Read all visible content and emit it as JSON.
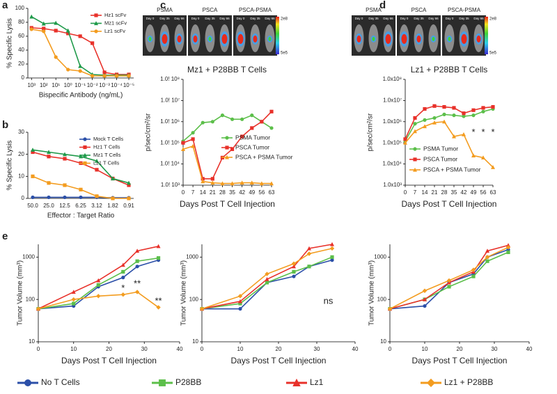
{
  "chart_data": [
    {
      "type": "line",
      "panel_label": "a",
      "ylabel": "% Specific Lysis",
      "xlabel": "Bispecific Antibody (ng/mL)",
      "x": [
        1000,
        100,
        10,
        1,
        0.1,
        0.01,
        0.001,
        0.0001,
        1e-05
      ],
      "xlog": true,
      "xlim": [
        2000,
        4e-06
      ],
      "xticks": [
        {
          "value": 1000,
          "label": "10³"
        },
        {
          "value": 100,
          "label": "10²"
        },
        {
          "value": 10,
          "label": "10¹"
        },
        {
          "value": 1,
          "label": "10⁰"
        },
        {
          "value": 0.1,
          "label": "10⁻¹"
        },
        {
          "value": 0.01,
          "label": "10⁻²"
        },
        {
          "value": 0.001,
          "label": "10⁻³"
        },
        {
          "value": 0.0001,
          "label": "10⁻⁴"
        },
        {
          "value": 1e-05,
          "label": "10⁻⁵"
        }
      ],
      "ylim": [
        0,
        100
      ],
      "yticks": [
        0,
        20,
        40,
        60,
        80,
        100
      ],
      "legend": "upper right",
      "series": [
        {
          "name": "Hz1 scFv",
          "color": "#e8312a",
          "marker": "square",
          "values": [
            72,
            71,
            68,
            64,
            60,
            50,
            8,
            5,
            5
          ]
        },
        {
          "name": "Mz1 scFv",
          "color": "#1f9a4a",
          "marker": "triangle",
          "values": [
            88,
            78,
            79,
            68,
            17,
            5,
            4,
            4,
            4
          ]
        },
        {
          "name": "Lz1 scFv",
          "color": "#f39c1f",
          "marker": "circle",
          "values": [
            70,
            67,
            30,
            12,
            10,
            3,
            3,
            3,
            3
          ]
        }
      ]
    },
    {
      "type": "line",
      "panel_label": "b",
      "ylabel": "% Specific Lysis",
      "xlabel": "Effector : Target Ratio",
      "categories": [
        "50.0",
        "25.0",
        "12.5",
        "6.25",
        "3.12",
        "1.82",
        "0.91"
      ],
      "ylim": [
        0,
        30
      ],
      "yticks": [
        0,
        10,
        20,
        30
      ],
      "legend": "upper right",
      "series": [
        {
          "name": "Mock T Cells",
          "color": "#2b4fa8",
          "marker": "circle",
          "values": [
            0.5,
            0.5,
            0.5,
            0.5,
            0.5,
            0.3,
            0.3
          ]
        },
        {
          "name": "Hz1 T Cells",
          "color": "#e8312a",
          "marker": "square",
          "values": [
            21,
            19,
            18,
            16,
            13,
            9,
            6
          ]
        },
        {
          "name": "Mz1 T Cells",
          "color": "#1f9a4a",
          "marker": "triangle",
          "values": [
            22,
            21,
            20,
            19,
            17,
            9,
            7
          ]
        },
        {
          "name": "Lz1 T Cells",
          "color": "#f39c1f",
          "marker": "square",
          "values": [
            10,
            7,
            6,
            4,
            1,
            0,
            0
          ]
        }
      ]
    },
    {
      "type": "line",
      "panel_label": "c",
      "title": "Mz1 + P28BB T Cells",
      "ylabel": "p/sec/cm²/sr",
      "xlabel": "Days Post T Cell Injection",
      "images": {
        "groups": [
          {
            "label": "PSMA",
            "days": [
              "Day 0",
              "Day 35",
              "Day 66"
            ]
          },
          {
            "label": "PSCA",
            "days": [
              "Day 0",
              "Day 35",
              "Day 66"
            ]
          },
          {
            "label": "PSCA-PSMA",
            "days": [
              "Day 0",
              "Day 35",
              "Day 66"
            ]
          }
        ],
        "scale_max": "2e8",
        "scale_min": "5e5"
      },
      "x": [
        0,
        7,
        14,
        21,
        28,
        35,
        42,
        49,
        56,
        63
      ],
      "xlim": [
        0,
        63
      ],
      "xticks": [
        0,
        7,
        14,
        21,
        28,
        35,
        42,
        49,
        56,
        63
      ],
      "ylog": true,
      "ylim": [
        1000,
        100000000
      ],
      "yticks": [
        {
          "value": 1000,
          "label": "1.0! 10³"
        },
        {
          "value": 10000,
          "label": "1.0! 10⁴"
        },
        {
          "value": 100000,
          "label": "1.0! 10⁵"
        },
        {
          "value": 1000000,
          "label": "1.0! 10⁶"
        },
        {
          "value": 10000000,
          "label": "1.0! 10⁷"
        },
        {
          "value": 100000000,
          "label": "1.0! 10⁸"
        }
      ],
      "legend": "lower right",
      "series": [
        {
          "name": "PSMA Tumor",
          "color": "#5cbf4a",
          "marker": "circle",
          "values": [
            120000,
            300000,
            900000,
            1000000,
            2000000,
            1300000,
            1300000,
            2000000,
            1000000,
            500000
          ]
        },
        {
          "name": "PSCA Tumor",
          "color": "#e8312a",
          "marker": "square",
          "values": [
            100000,
            150000,
            2000,
            2000,
            20000,
            50000,
            200000,
            500000,
            1000000,
            3000000
          ]
        },
        {
          "name": "PSCA + PSMA Tumor",
          "color": "#f39c1f",
          "marker": "triangle",
          "values": [
            50000,
            70000,
            1500,
            1300,
            1200,
            1200,
            1300,
            1300,
            1200,
            1200
          ]
        }
      ]
    },
    {
      "type": "line",
      "panel_label": "d",
      "title": "Lz1 + P28BB T Cells",
      "ylabel": "p/sec/cm²/sr",
      "xlabel": "Days Post T Cell Injection",
      "images": {
        "groups": [
          {
            "label": "PSMA",
            "days": [
              "Day 0",
              "Day 35",
              "Day 66"
            ]
          },
          {
            "label": "PSCA",
            "days": [
              "Day 0",
              "Day 35",
              "Day 66"
            ]
          },
          {
            "label": "PSCA-PSMA",
            "days": [
              "Day 0",
              "Day 35",
              "Day 66"
            ]
          }
        ],
        "scale_max": "2e8",
        "scale_min": "5e5"
      },
      "x": [
        0,
        7,
        14,
        21,
        28,
        35,
        42,
        49,
        56,
        63
      ],
      "xlim": [
        0,
        63
      ],
      "xticks": [
        0,
        7,
        14,
        21,
        28,
        35,
        42,
        49,
        56,
        63
      ],
      "ylog": true,
      "ylim": [
        1000,
        100000000
      ],
      "yticks": [
        {
          "value": 1000,
          "label": "1.0x10³"
        },
        {
          "value": 10000,
          "label": "1.0x10⁴"
        },
        {
          "value": 100000,
          "label": "1.0x10⁵"
        },
        {
          "value": 1000000,
          "label": "1.0x10⁶"
        },
        {
          "value": 10000000,
          "label": "1.0x10⁷"
        },
        {
          "value": 100000000,
          "label": "1.0x10⁸"
        }
      ],
      "legend": "lower left",
      "annotations": [
        {
          "text": "*",
          "x": 49,
          "y": 300000
        },
        {
          "text": "*",
          "x": 56,
          "y": 300000
        },
        {
          "text": "*",
          "x": 63,
          "y": 300000
        }
      ],
      "series": [
        {
          "name": "PSMA Tumor",
          "color": "#5cbf4a",
          "marker": "circle",
          "values": [
            120000,
            800000,
            1200000,
            1500000,
            2200000,
            2000000,
            1800000,
            2000000,
            3000000,
            4000000
          ]
        },
        {
          "name": "PSCA Tumor",
          "color": "#e8312a",
          "marker": "square",
          "values": [
            150000,
            1500000,
            4000000,
            5500000,
            5000000,
            4500000,
            2500000,
            3500000,
            4500000,
            5000000
          ]
        },
        {
          "name": "PSCA + PSMA Tumor",
          "color": "#f39c1f",
          "marker": "triangle",
          "values": [
            100000,
            350000,
            600000,
            900000,
            1000000,
            200000,
            250000,
            25000,
            20000,
            7000
          ]
        }
      ]
    },
    {
      "type": "line",
      "panel_label": "e",
      "ylabel": "Tumor Volume (mm³)",
      "xlabel": "Days Post T Cell Injection",
      "x": [
        0,
        10,
        17,
        24,
        28,
        34
      ],
      "xlim": [
        0,
        40
      ],
      "xticks": [
        0,
        10,
        20,
        30,
        40
      ],
      "ylog": true,
      "ylim": [
        10,
        2000
      ],
      "yticks": [
        10,
        100,
        1000
      ],
      "legend": "bottom",
      "annotations": [
        {
          "text": "*",
          "x": 24,
          "y": 180
        },
        {
          "text": "**",
          "x": 28,
          "y": 230
        },
        {
          "text": "**",
          "x": 34,
          "y": 90
        }
      ],
      "series": [
        {
          "name": "No T Cells",
          "color": "#2b4fa8",
          "marker": "circle",
          "values": [
            60,
            70,
            200,
            330,
            600,
            850
          ]
        },
        {
          "name": "P28BB",
          "color": "#5cbf4a",
          "marker": "square",
          "values": [
            60,
            80,
            220,
            450,
            800,
            950
          ]
        },
        {
          "name": "Lz1",
          "color": "#e8312a",
          "marker": "triangle",
          "values": [
            60,
            150,
            280,
            650,
            1400,
            1800
          ]
        },
        {
          "name": "Lz1 + P28BB",
          "color": "#f39c1f",
          "marker": "diamond",
          "values": [
            60,
            100,
            120,
            130,
            150,
            65
          ]
        }
      ]
    },
    {
      "type": "line",
      "ylabel": "Tumor Volume (mm³)",
      "xlabel": "Days Post T Cell Injection",
      "x": [
        0,
        10,
        17,
        24,
        28,
        34
      ],
      "xlim": [
        0,
        40
      ],
      "xticks": [
        0,
        10,
        20,
        30,
        40
      ],
      "ylog": true,
      "ylim": [
        10,
        2000
      ],
      "yticks": [
        10,
        100,
        1000
      ],
      "annotations": [
        {
          "text": "ns",
          "x": 33,
          "y": 90
        }
      ],
      "series": [
        {
          "color": "#2b4fa8",
          "marker": "circle",
          "values": [
            60,
            60,
            250,
            350,
            600,
            850
          ]
        },
        {
          "color": "#5cbf4a",
          "marker": "square",
          "values": [
            60,
            80,
            250,
            450,
            600,
            1000
          ]
        },
        {
          "color": "#e8312a",
          "marker": "triangle",
          "values": [
            60,
            90,
            300,
            600,
            1600,
            2000
          ]
        },
        {
          "color": "#f39c1f",
          "marker": "diamond",
          "values": [
            60,
            120,
            400,
            700,
            1200,
            1600
          ]
        }
      ]
    },
    {
      "type": "line",
      "ylabel": "Tumor Volume (mm³)",
      "xlabel": "Days Post T Cell Injection",
      "x": [
        0,
        10,
        17,
        24,
        28,
        34
      ],
      "xlim": [
        0,
        40
      ],
      "xticks": [
        0,
        10,
        20,
        30,
        40
      ],
      "ylog": true,
      "ylim": [
        10,
        2000
      ],
      "yticks": [
        10,
        100,
        1000
      ],
      "series": [
        {
          "color": "#2b4fa8",
          "marker": "circle",
          "values": [
            60,
            70,
            250,
            400,
            1000,
            1500
          ]
        },
        {
          "color": "#5cbf4a",
          "marker": "square",
          "values": [
            60,
            100,
            200,
            350,
            800,
            1300
          ]
        },
        {
          "color": "#e8312a",
          "marker": "triangle",
          "values": [
            60,
            100,
            250,
            450,
            1400,
            1900
          ]
        },
        {
          "color": "#f39c1f",
          "marker": "diamond",
          "values": [
            60,
            160,
            280,
            500,
            1000,
            1700
          ]
        }
      ]
    }
  ]
}
